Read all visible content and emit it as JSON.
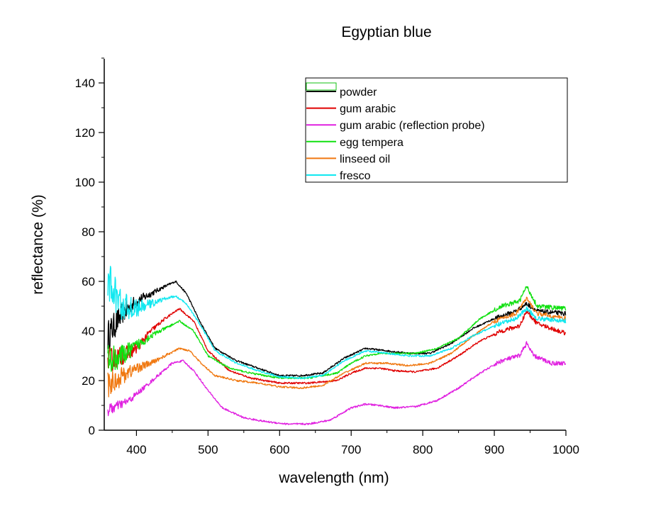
{
  "chart_data": {
    "type": "line",
    "title": "Egyptian blue",
    "xlabel": "wavelength (nm)",
    "ylabel": "reflectance (%)",
    "xlim": [
      355,
      1000
    ],
    "ylim": [
      0,
      150
    ],
    "x_ticks": [
      400,
      500,
      600,
      700,
      800,
      900,
      1000
    ],
    "y_ticks": [
      0,
      20,
      40,
      60,
      80,
      100,
      120,
      140
    ],
    "grid": false,
    "legend_position": "top-right",
    "series": [
      {
        "name": "powder",
        "color": "#000000",
        "noise": 6,
        "x": [
          360,
          380,
          400,
          420,
          440,
          455,
          470,
          490,
          510,
          540,
          570,
          600,
          630,
          660,
          690,
          720,
          750,
          780,
          810,
          840,
          870,
          900,
          930,
          945,
          960,
          1000
        ],
        "values": [
          38,
          47,
          52,
          55,
          58,
          60,
          55,
          43,
          33,
          28,
          25,
          22,
          22,
          23,
          29,
          33,
          32,
          31,
          31,
          35,
          41,
          45,
          48,
          51,
          48,
          47
        ]
      },
      {
        "name": "gum arabic",
        "color": "#e00000",
        "noise": 5,
        "x": [
          360,
          380,
          400,
          420,
          440,
          460,
          480,
          500,
          530,
          560,
          600,
          640,
          680,
          700,
          720,
          740,
          760,
          790,
          820,
          850,
          880,
          910,
          935,
          945,
          960,
          1000
        ],
        "values": [
          28,
          30,
          33,
          40,
          45,
          49,
          44,
          32,
          24,
          21,
          19,
          19,
          20,
          23,
          25,
          25,
          24,
          23.5,
          25,
          30,
          36,
          40,
          42,
          48,
          43,
          39
        ]
      },
      {
        "name": "gum arabic (reflection probe)",
        "color": "#e020e0",
        "noise": 2,
        "x": [
          360,
          375,
          390,
          410,
          430,
          450,
          465,
          480,
          500,
          520,
          550,
          580,
          610,
          640,
          670,
          700,
          720,
          740,
          760,
          790,
          820,
          850,
          880,
          910,
          935,
          945,
          955,
          980,
          1000
        ],
        "values": [
          8,
          10,
          12,
          17,
          22,
          27,
          28,
          24,
          16,
          9,
          5,
          3.5,
          2.5,
          2.5,
          4,
          9,
          10.5,
          10,
          9,
          9.5,
          12,
          17,
          23,
          28,
          30,
          35,
          30,
          27,
          27
        ]
      },
      {
        "name": "egg tempera",
        "color": "#10e010",
        "noise": 6,
        "x": [
          360,
          380,
          400,
          420,
          440,
          460,
          480,
          500,
          530,
          560,
          600,
          640,
          680,
          700,
          720,
          740,
          760,
          790,
          820,
          850,
          880,
          910,
          935,
          945,
          960,
          1000
        ],
        "values": [
          28,
          30,
          34,
          38,
          41,
          44,
          40,
          30,
          25,
          23,
          21,
          21,
          23,
          27,
          30,
          31,
          31,
          31,
          33,
          37,
          45,
          50,
          52,
          58,
          50,
          49
        ]
      },
      {
        "name": "linseed oil",
        "color": "#f07810",
        "noise": 5,
        "x": [
          360,
          380,
          400,
          420,
          440,
          460,
          475,
          490,
          510,
          540,
          570,
          600,
          630,
          660,
          690,
          720,
          750,
          780,
          810,
          840,
          870,
          900,
          930,
          945,
          960,
          1000
        ],
        "values": [
          18,
          22,
          25,
          27,
          30,
          33,
          32,
          27,
          22,
          20,
          19,
          17.5,
          17,
          18,
          23,
          27,
          27,
          26,
          27,
          31,
          38,
          44,
          47,
          53,
          47,
          45
        ]
      },
      {
        "name": "fresco",
        "color": "#10e8f0",
        "noise": 9,
        "x": [
          360,
          380,
          400,
          420,
          440,
          455,
          470,
          490,
          510,
          540,
          570,
          600,
          630,
          660,
          690,
          720,
          750,
          780,
          810,
          840,
          870,
          900,
          930,
          945,
          960,
          1000
        ],
        "values": [
          60,
          50,
          49,
          51,
          53,
          54,
          51,
          42,
          32,
          27,
          24,
          21.5,
          21,
          22,
          28,
          32,
          31,
          30,
          30,
          33,
          38,
          42,
          45,
          49,
          45,
          44
        ]
      }
    ]
  }
}
